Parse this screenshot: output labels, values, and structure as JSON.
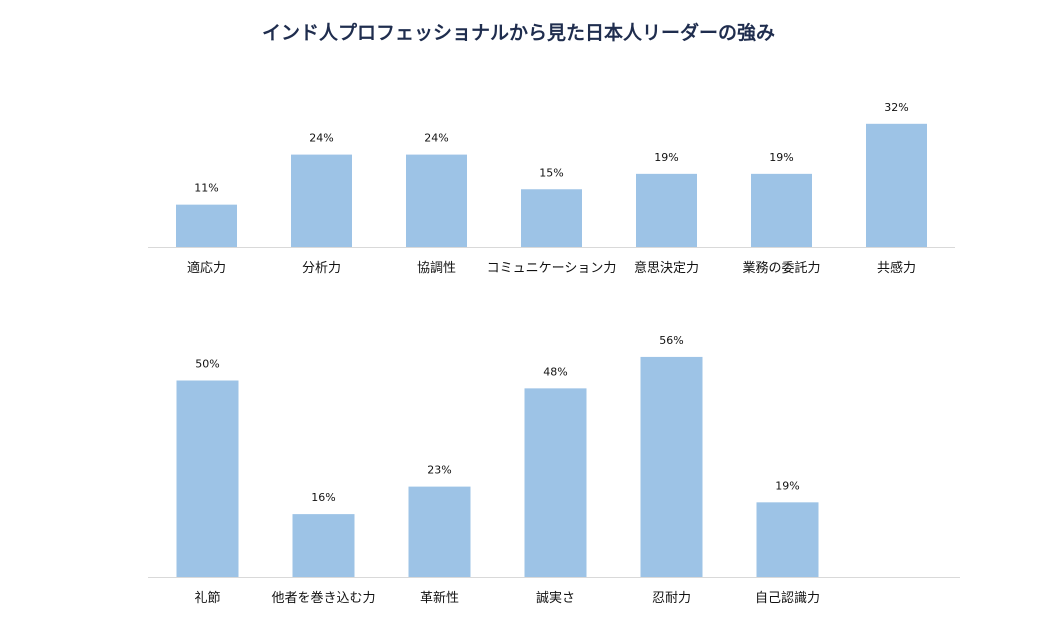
{
  "title": "インド人プロフェッショナルから見た日本人リーダーの強み",
  "colors": {
    "bar": "#9dc3e6",
    "axis": "#d9d9d9",
    "text": "#111111",
    "title": "#1f2d4e"
  },
  "chart_data": [
    {
      "type": "bar",
      "categories": [
        "適応力",
        "分析力",
        "協調性",
        "コミュニケーション力",
        "意思決定力",
        "業務の委託力",
        "共感力"
      ],
      "values": [
        11,
        24,
        24,
        15,
        19,
        19,
        32
      ],
      "value_labels": [
        "11%",
        "24%",
        "24%",
        "15%",
        "19%",
        "19%",
        "32%"
      ],
      "unit": "%",
      "grid": false
    },
    {
      "type": "bar",
      "categories": [
        "礼節",
        "他者を巻き込む力",
        "革新性",
        "誠実さ",
        "忍耐力",
        "自己認識力"
      ],
      "values": [
        50,
        16,
        23,
        48,
        56,
        19
      ],
      "value_labels": [
        "50%",
        "16%",
        "23%",
        "48%",
        "56%",
        "19%"
      ],
      "unit": "%",
      "grid": false
    }
  ]
}
